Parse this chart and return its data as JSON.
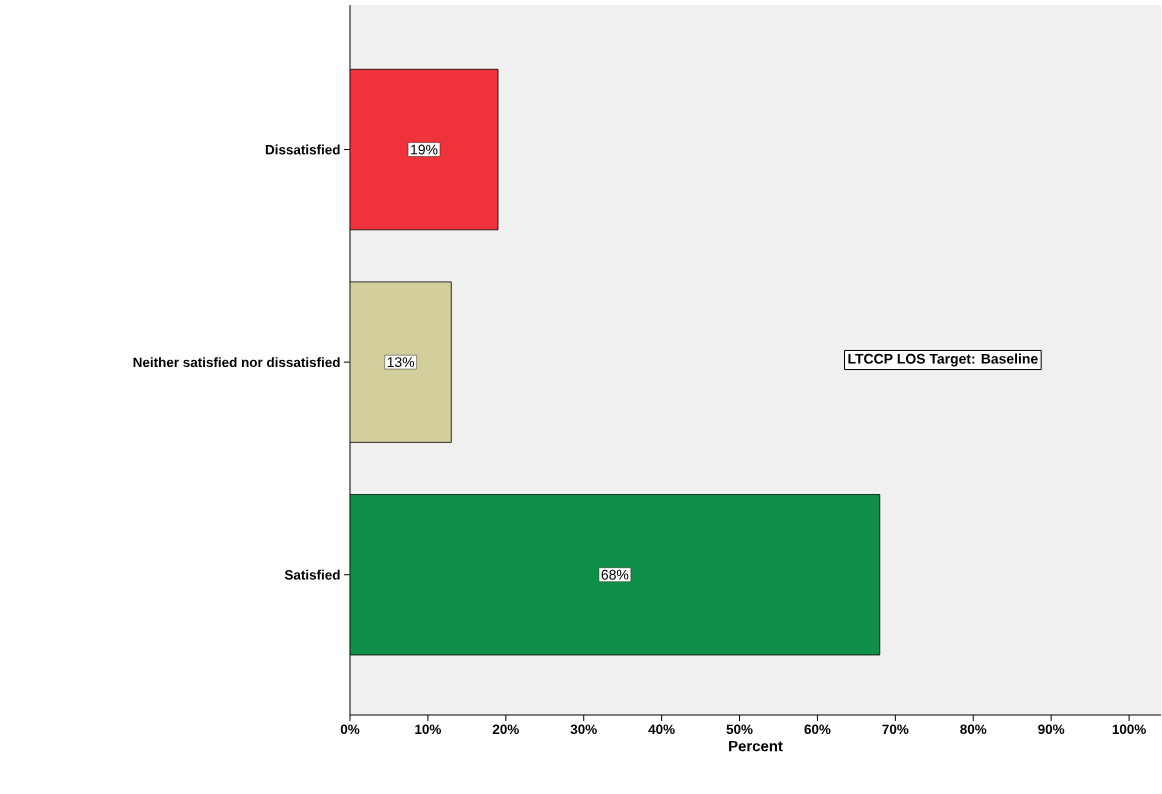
{
  "chart_data": {
    "type": "bar",
    "orientation": "horizontal",
    "xlabel": "Percent",
    "categories": [
      "Dissatisfied",
      "Neither satisfied nor dissatisfied",
      "Satisfied"
    ],
    "values": [
      19,
      13,
      68
    ],
    "colors": [
      "#f0323a",
      "#d3cf9c",
      "#108f48"
    ],
    "value_labels": [
      "19%",
      "13%",
      "68%"
    ],
    "xlim": [
      0,
      104.1
    ],
    "xticks": [
      {
        "value": 0,
        "label": "0%"
      },
      {
        "value": 10,
        "label": "10%"
      },
      {
        "value": 20,
        "label": "20%"
      },
      {
        "value": 30,
        "label": "30%"
      },
      {
        "value": 40,
        "label": "40%"
      },
      {
        "value": 50,
        "label": "50%"
      },
      {
        "value": 60,
        "label": "60%"
      },
      {
        "value": 70,
        "label": "70%"
      },
      {
        "value": 80,
        "label": "80%"
      },
      {
        "value": 90,
        "label": "90%"
      },
      {
        "value": 100,
        "label": "100%"
      }
    ],
    "annotations": [
      "LTCCP LOS Target: Baseline"
    ],
    "grid": false
  }
}
